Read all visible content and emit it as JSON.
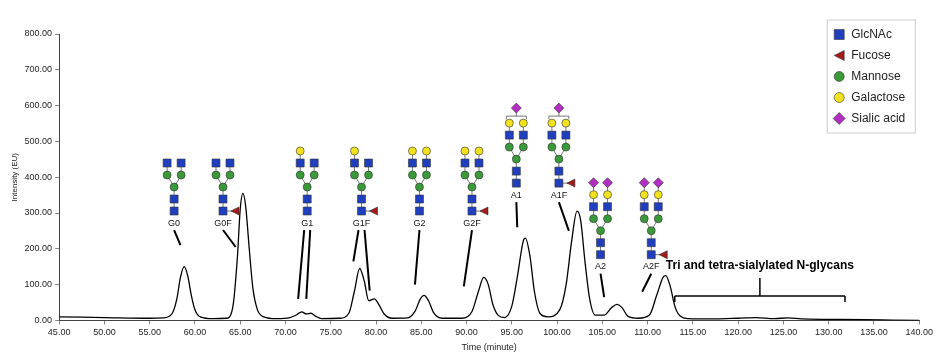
{
  "chart_data": {
    "type": "line",
    "x_label": "Time (minute)",
    "y_label": "Intensity (EU)",
    "color": "#000000",
    "marker": "none",
    "grid": false,
    "x": [
      45,
      50,
      55,
      56.5,
      57.5,
      58,
      58.4,
      58.8,
      59.2,
      59.6,
      60,
      60.6,
      62,
      63.5,
      64.2,
      64.7,
      65.0,
      65.3,
      65.6,
      66,
      66.4,
      66.9,
      67.6,
      69,
      70.5,
      71.2,
      71.8,
      72.3,
      72.8,
      73.3,
      74,
      76,
      77,
      77.6,
      78.2,
      78.7,
      79.2,
      79.8,
      80.3,
      80.9,
      81.8,
      83.5,
      84.3,
      84.9,
      85.3,
      85.8,
      86.4,
      87.3,
      89.5,
      90.6,
      91.3,
      91.9,
      92.4,
      92.9,
      93.5,
      94.2,
      95,
      95.6,
      96.3,
      96.5,
      97,
      97.5,
      98.1,
      99,
      100.3,
      101,
      101.6,
      102.2,
      102.6,
      103.1,
      103.6,
      104.2,
      105.2,
      106,
      106.6,
      107.2,
      107.8,
      109,
      110.2,
      111,
      111.7,
      112,
      112.5,
      113,
      113.6,
      114.5,
      117,
      120,
      122,
      124,
      125.5,
      127,
      130,
      134,
      137,
      140
    ],
    "values": [
      10,
      8,
      6,
      7,
      20,
      60,
      120,
      150,
      125,
      70,
      30,
      10,
      5,
      6,
      40,
      180,
      310,
      355,
      320,
      200,
      90,
      30,
      10,
      5,
      8,
      15,
      24,
      18,
      20,
      12,
      5,
      6,
      20,
      80,
      145,
      110,
      55,
      60,
      45,
      18,
      6,
      7,
      25,
      60,
      70,
      55,
      20,
      6,
      6,
      25,
      80,
      120,
      100,
      45,
      14,
      8,
      40,
      120,
      225,
      230,
      180,
      80,
      20,
      10,
      30,
      100,
      220,
      305,
      280,
      160,
      60,
      15,
      15,
      35,
      45,
      35,
      12,
      6,
      15,
      70,
      120,
      125,
      95,
      40,
      12,
      5,
      4,
      6,
      8,
      5,
      7,
      4,
      3,
      2,
      1,
      0
    ],
    "xlim": [
      45,
      140
    ],
    "xticks": [
      {
        "value": 45,
        "label": "45.00"
      },
      {
        "value": 50,
        "label": "50.00"
      },
      {
        "value": 55,
        "label": "55.00"
      },
      {
        "value": 60,
        "label": "60.00"
      },
      {
        "value": 65,
        "label": "65.00"
      },
      {
        "value": 70,
        "label": "70.00"
      },
      {
        "value": 75,
        "label": "75.00"
      },
      {
        "value": 80,
        "label": "80.00"
      },
      {
        "value": 85,
        "label": "85.00"
      },
      {
        "value": 90,
        "label": "90.00"
      },
      {
        "value": 95,
        "label": "95.00"
      },
      {
        "value": 100,
        "label": "100.00"
      },
      {
        "value": 105,
        "label": "105.00"
      },
      {
        "value": 110,
        "label": "110.00"
      },
      {
        "value": 115,
        "label": "115.00"
      },
      {
        "value": 120,
        "label": "120.00"
      },
      {
        "value": 125,
        "label": "125.00"
      },
      {
        "value": 130,
        "label": "130.00"
      },
      {
        "value": 135,
        "label": "135.00"
      },
      {
        "value": 140,
        "label": "140.00"
      }
    ],
    "ylim": [
      0,
      800
    ],
    "yticks": [
      {
        "value": 0,
        "label": "0.00"
      },
      {
        "value": 100,
        "label": "100.00"
      },
      {
        "value": 200,
        "label": "200.00"
      },
      {
        "value": 300,
        "label": "300.00"
      },
      {
        "value": 400,
        "label": "400.00"
      },
      {
        "value": 500,
        "label": "500.00"
      },
      {
        "value": 600,
        "label": "600.00"
      },
      {
        "value": 700,
        "label": "700.00"
      },
      {
        "value": 800,
        "label": "800.00"
      }
    ],
    "symbols": [
      {
        "name": "GlcNAc",
        "color": "#1f3fbf",
        "marker": "square"
      },
      {
        "name": "Fucose",
        "color": "#a31a1a",
        "marker": "triangle"
      },
      {
        "name": "Mannose",
        "color": "#3a9a3a",
        "marker": "circle"
      },
      {
        "name": "Galactose",
        "color": "#f2e21e",
        "marker": "circle"
      },
      {
        "name": "Sialic acid",
        "color": "#b12fc0",
        "marker": "diamond"
      }
    ],
    "annotations": [
      {
        "text": "G0",
        "x": 57.7,
        "y": 272,
        "points_to": [
          [
            58.4,
            210
          ]
        ],
        "structure": {
          "GlcNAc": 4,
          "Mannose": 3,
          "Fucose": 0,
          "Galactose": 0,
          "Sialic acid": 0
        }
      },
      {
        "text": "G0F",
        "x": 63.1,
        "y": 272,
        "points_to": [
          [
            64.5,
            205
          ]
        ],
        "structure": {
          "GlcNAc": 4,
          "Mannose": 3,
          "Fucose": 1,
          "Galactose": 0,
          "Sialic acid": 0
        }
      },
      {
        "text": "G1",
        "x": 72.4,
        "y": 272,
        "points_to": [
          [
            71.4,
            60
          ],
          [
            72.3,
            60
          ]
        ],
        "structure": {
          "GlcNAc": 4,
          "Mannose": 3,
          "Fucose": 0,
          "Galactose": 1,
          "Sialic acid": 0
        }
      },
      {
        "text": "G1F",
        "x": 78.4,
        "y": 272,
        "points_to": [
          [
            77.5,
            165
          ],
          [
            79.3,
            83
          ]
        ],
        "structure": {
          "GlcNAc": 4,
          "Mannose": 3,
          "Fucose": 1,
          "Galactose": 1,
          "Sialic acid": 0
        }
      },
      {
        "text": "G2",
        "x": 84.8,
        "y": 272,
        "points_to": [
          [
            84.3,
            100
          ]
        ],
        "structure": {
          "GlcNAc": 4,
          "Mannose": 3,
          "Fucose": 0,
          "Galactose": 2,
          "Sialic acid": 0
        }
      },
      {
        "text": "G2F",
        "x": 90.6,
        "y": 272,
        "points_to": [
          [
            89.7,
            95
          ]
        ],
        "structure": {
          "GlcNAc": 4,
          "Mannose": 3,
          "Fucose": 1,
          "Galactose": 2,
          "Sialic acid": 0
        }
      },
      {
        "text": "A1",
        "x": 95.5,
        "y": 350,
        "points_to": [
          [
            95.6,
            260
          ]
        ],
        "structure": {
          "GlcNAc": 4,
          "Mannose": 3,
          "Fucose": 0,
          "Galactose": 2,
          "Sialic acid": 1
        }
      },
      {
        "text": "A1F",
        "x": 100.2,
        "y": 350,
        "points_to": [
          [
            101.3,
            250
          ]
        ],
        "structure": {
          "GlcNAc": 4,
          "Mannose": 3,
          "Fucose": 1,
          "Galactose": 2,
          "Sialic acid": 1
        }
      },
      {
        "text": "A2",
        "x": 104.8,
        "y": 150,
        "points_to": [
          [
            105.2,
            65
          ]
        ],
        "structure": {
          "GlcNAc": 4,
          "Mannose": 3,
          "Fucose": 0,
          "Galactose": 2,
          "Sialic acid": 2
        }
      },
      {
        "text": "A2F",
        "x": 110.4,
        "y": 150,
        "points_to": [
          [
            109.4,
            80
          ]
        ],
        "structure": {
          "GlcNAc": 4,
          "Mannose": 3,
          "Fucose": 1,
          "Galactose": 2,
          "Sialic acid": 2
        }
      }
    ],
    "bracket": {
      "text": "Tri and tetra-sialylated N-glycans",
      "x_range": [
        113,
        131.8
      ],
      "y": 68
    }
  }
}
